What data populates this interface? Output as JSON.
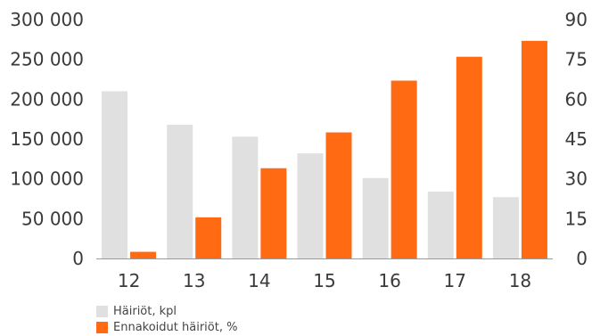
{
  "chart_data": {
    "type": "bar",
    "categories": [
      "12",
      "13",
      "14",
      "15",
      "16",
      "17",
      "18"
    ],
    "series": [
      {
        "name": "Häiriöt, kpl",
        "axis": "left",
        "color": "#e0e0e0",
        "values": [
          210000,
          168000,
          153000,
          132000,
          101000,
          84000,
          77000
        ]
      },
      {
        "name": "Ennakoidut häiriöt, %",
        "axis": "right",
        "color": "#ff6a13",
        "values": [
          2.5,
          15.5,
          34,
          47.5,
          67,
          76,
          82
        ]
      }
    ],
    "y_left": {
      "min": 0,
      "max": 300000,
      "ticks": [
        0,
        50000,
        100000,
        150000,
        200000,
        250000,
        300000
      ],
      "tick_labels": [
        "0",
        "50 000",
        "100 000",
        "150 000",
        "200 000",
        "250 000",
        "300 000"
      ]
    },
    "y_right": {
      "min": 0,
      "max": 90,
      "ticks": [
        0,
        15,
        30,
        45,
        60,
        75,
        90
      ],
      "tick_labels": [
        "0",
        "15",
        "30",
        "45",
        "60",
        "75",
        "90"
      ]
    },
    "grid": false,
    "legend_position": "bottom-left"
  },
  "legend": {
    "items": [
      {
        "label": "Häiriöt, kpl",
        "color": "#e0e0e0"
      },
      {
        "label": "Ennakoidut häiriöt, %",
        "color": "#ff6a13"
      }
    ]
  }
}
